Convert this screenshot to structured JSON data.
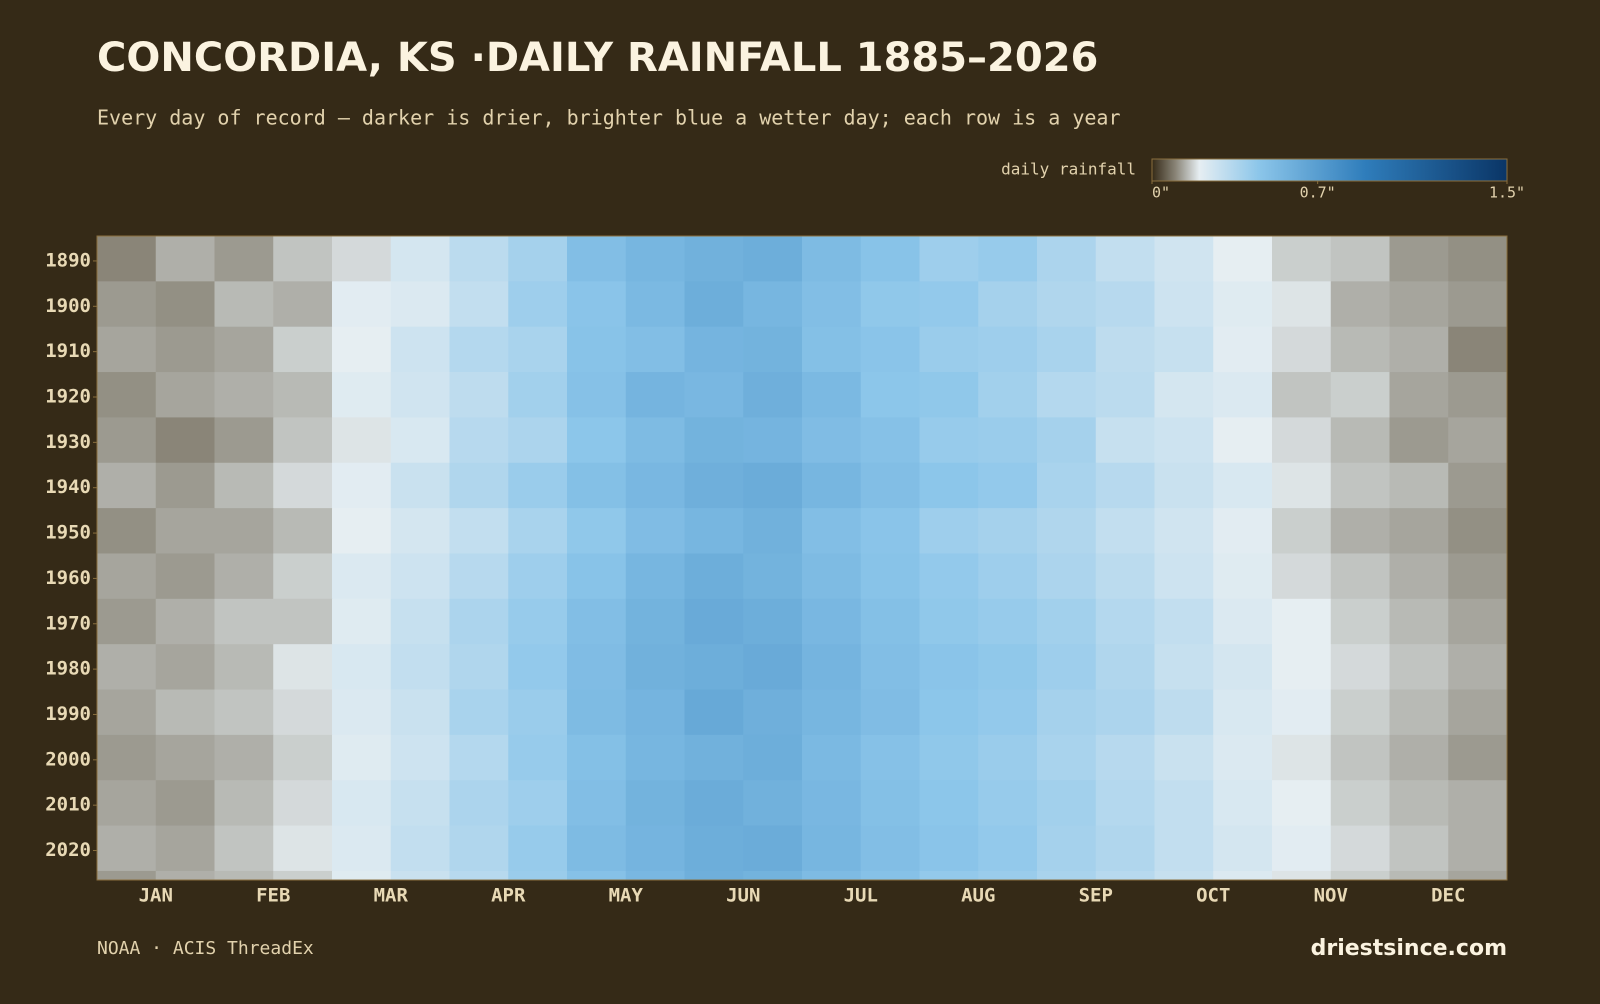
{
  "chart_data": {
    "type": "heatmap",
    "title": "CONCORDIA, KS ·DAILY RAINFALL 1885–2026",
    "subtitle": "Every day of record — darker is drier, brighter blue a wetter day; each row is a year",
    "categories": [
      "JAN",
      "FEB",
      "MAR",
      "APR",
      "MAY",
      "JUN",
      "JUL",
      "AUG",
      "SEP",
      "OCT",
      "NOV",
      "DEC"
    ],
    "ylim": [
      1885,
      2027
    ],
    "yticks": [
      1890,
      1900,
      1910,
      1920,
      1930,
      1940,
      1950,
      1960,
      1970,
      1980,
      1990,
      2000,
      2010,
      2020
    ],
    "ybins": [
      1885,
      1895,
      1905,
      1915,
      1925,
      1935,
      1945,
      1955,
      1965,
      1975,
      1985,
      1995,
      2005,
      2015,
      2025,
      2027
    ],
    "z": [
      [
        0.1,
        0.14,
        0.12,
        0.16,
        0.18,
        0.25,
        0.32,
        0.38,
        0.5,
        0.55,
        0.58,
        0.6,
        0.52,
        0.47,
        0.4,
        0.42,
        0.36,
        0.3,
        0.26,
        0.2,
        0.17,
        0.16,
        0.12,
        0.11
      ],
      [
        0.12,
        0.11,
        0.15,
        0.14,
        0.21,
        0.23,
        0.3,
        0.4,
        0.46,
        0.53,
        0.6,
        0.55,
        0.5,
        0.44,
        0.43,
        0.38,
        0.35,
        0.33,
        0.27,
        0.22,
        0.19,
        0.14,
        0.13,
        0.12
      ],
      [
        0.13,
        0.12,
        0.13,
        0.17,
        0.2,
        0.27,
        0.34,
        0.37,
        0.47,
        0.5,
        0.56,
        0.57,
        0.49,
        0.46,
        0.41,
        0.4,
        0.37,
        0.31,
        0.29,
        0.21,
        0.18,
        0.15,
        0.14,
        0.1
      ],
      [
        0.11,
        0.13,
        0.14,
        0.15,
        0.22,
        0.26,
        0.31,
        0.39,
        0.48,
        0.56,
        0.54,
        0.59,
        0.53,
        0.45,
        0.44,
        0.39,
        0.34,
        0.32,
        0.25,
        0.23,
        0.16,
        0.17,
        0.13,
        0.12
      ],
      [
        0.12,
        0.1,
        0.12,
        0.16,
        0.19,
        0.24,
        0.33,
        0.36,
        0.45,
        0.52,
        0.57,
        0.56,
        0.51,
        0.48,
        0.42,
        0.41,
        0.38,
        0.29,
        0.27,
        0.2,
        0.18,
        0.15,
        0.12,
        0.13
      ],
      [
        0.14,
        0.12,
        0.15,
        0.18,
        0.21,
        0.28,
        0.35,
        0.41,
        0.49,
        0.54,
        0.59,
        0.61,
        0.55,
        0.5,
        0.45,
        0.43,
        0.37,
        0.33,
        0.28,
        0.24,
        0.19,
        0.16,
        0.15,
        0.12
      ],
      [
        0.11,
        0.13,
        0.13,
        0.15,
        0.2,
        0.25,
        0.3,
        0.37,
        0.44,
        0.51,
        0.55,
        0.58,
        0.5,
        0.46,
        0.4,
        0.38,
        0.35,
        0.3,
        0.26,
        0.21,
        0.17,
        0.14,
        0.13,
        0.11
      ],
      [
        0.13,
        0.12,
        0.14,
        0.17,
        0.23,
        0.27,
        0.33,
        0.4,
        0.47,
        0.55,
        0.6,
        0.57,
        0.52,
        0.47,
        0.43,
        0.4,
        0.36,
        0.32,
        0.27,
        0.22,
        0.18,
        0.16,
        0.14,
        0.12
      ],
      [
        0.12,
        0.14,
        0.16,
        0.16,
        0.22,
        0.29,
        0.36,
        0.42,
        0.5,
        0.57,
        0.62,
        0.6,
        0.54,
        0.49,
        0.44,
        0.42,
        0.39,
        0.34,
        0.3,
        0.23,
        0.2,
        0.17,
        0.15,
        0.13
      ],
      [
        0.14,
        0.13,
        0.15,
        0.19,
        0.24,
        0.3,
        0.35,
        0.43,
        0.51,
        0.58,
        0.6,
        0.62,
        0.56,
        0.5,
        0.46,
        0.44,
        0.4,
        0.35,
        0.29,
        0.25,
        0.2,
        0.18,
        0.16,
        0.14
      ],
      [
        0.13,
        0.15,
        0.16,
        0.18,
        0.23,
        0.28,
        0.37,
        0.41,
        0.52,
        0.56,
        0.63,
        0.59,
        0.55,
        0.51,
        0.45,
        0.43,
        0.38,
        0.36,
        0.31,
        0.24,
        0.21,
        0.17,
        0.15,
        0.13
      ],
      [
        0.12,
        0.13,
        0.14,
        0.17,
        0.22,
        0.27,
        0.34,
        0.42,
        0.49,
        0.55,
        0.58,
        0.6,
        0.53,
        0.48,
        0.44,
        0.41,
        0.37,
        0.33,
        0.28,
        0.23,
        0.19,
        0.16,
        0.14,
        0.12
      ],
      [
        0.13,
        0.12,
        0.15,
        0.18,
        0.24,
        0.29,
        0.36,
        0.4,
        0.5,
        0.57,
        0.61,
        0.58,
        0.54,
        0.49,
        0.45,
        0.42,
        0.39,
        0.34,
        0.3,
        0.24,
        0.2,
        0.17,
        0.15,
        0.14
      ],
      [
        0.14,
        0.13,
        0.16,
        0.19,
        0.23,
        0.3,
        0.35,
        0.42,
        0.52,
        0.56,
        0.6,
        0.61,
        0.55,
        0.5,
        0.46,
        0.43,
        0.38,
        0.35,
        0.3,
        0.25,
        0.21,
        0.18,
        0.16,
        0.14
      ],
      [
        0.12,
        0.14,
        0.15,
        0.17,
        0.22,
        0.28,
        0.33,
        0.41,
        0.48,
        0.54,
        0.59,
        0.57,
        0.52,
        0.48,
        0.43,
        0.41,
        0.37,
        0.33,
        0.29,
        0.23,
        0.19,
        0.17,
        0.15,
        0.13
      ]
    ],
    "colorbar_label": "daily rainfall",
    "zlim": [
      0,
      1.5
    ],
    "zticks": [
      {
        "value": 0,
        "label": "0\""
      },
      {
        "value": 0.7,
        "label": "0.7\""
      },
      {
        "value": 1.5,
        "label": "1.5\""
      }
    ],
    "colorscale": [
      [
        0,
        "#352a17"
      ],
      [
        0.1,
        "#8a8578"
      ],
      [
        0.2,
        "#e6eef2"
      ],
      [
        0.45,
        "#8cc6ea"
      ],
      [
        0.9,
        "#2f7dbb"
      ],
      [
        1.5,
        "#0a3566"
      ]
    ],
    "source": "NOAA · ACIS ThreadEx",
    "brand": "driestsince.com"
  }
}
